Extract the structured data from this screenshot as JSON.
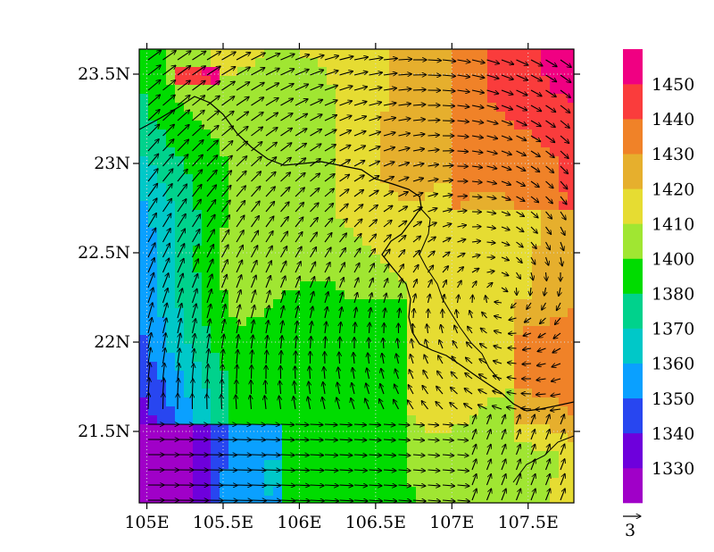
{
  "map": {
    "lon_ticks": [
      "105E",
      "105.5E",
      "106E",
      "106.5E",
      "107E",
      "107.5E"
    ],
    "lat_ticks": [
      "21.5N",
      "22N",
      "22.5N",
      "23N",
      "23.5N"
    ],
    "lon_values": [
      105.0,
      105.5,
      106.0,
      106.5,
      107.0,
      107.5
    ],
    "lat_values": [
      21.5,
      22.0,
      22.5,
      23.0,
      23.5
    ],
    "extent": {
      "lon_min": 104.95,
      "lon_max": 107.8,
      "lat_min": 21.1,
      "lat_max": 23.64
    },
    "colorbar": {
      "labels": [
        "1330",
        "1340",
        "1350",
        "1360",
        "1370",
        "1380",
        "1400",
        "1410",
        "1420",
        "1430",
        "1440",
        "1450"
      ],
      "colors": [
        "#a000c8",
        "#6e00dc",
        "#2846f0",
        "#0aa0ff",
        "#00c8c8",
        "#00d28c",
        "#00dc00",
        "#a0e632",
        "#e6dc32",
        "#e6af2d",
        "#f08228",
        "#fa3c3c",
        "#f00082"
      ]
    },
    "vector_reference": "3"
  }
}
